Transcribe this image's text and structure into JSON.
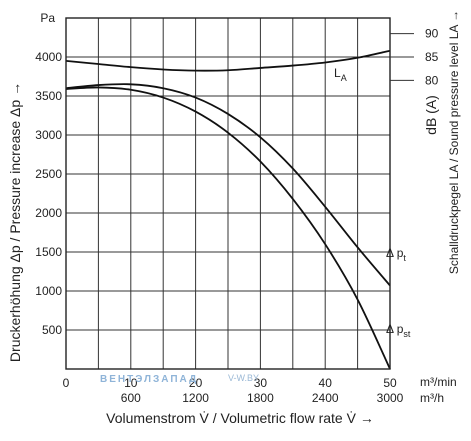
{
  "chart_data": {
    "type": "line",
    "xlabel": "Volumenstrom V̇ / Volumetric flow rate V̇ →",
    "ylabel_left": "Druckerhöhung Δp / Pressure increase Δp →",
    "ylabel_right_db": "dB (A)",
    "ylabel_right_desc": "Schalldruckpegel LA / Sound pressure level LA →",
    "y_unit": "Pa",
    "x_unit_min": "m³/min",
    "x_unit_h": "m³/h",
    "xlim_min": [
      0,
      50
    ],
    "ylim": [
      0,
      4500
    ],
    "x_ticks_min": [
      0,
      10,
      20,
      30,
      40,
      50
    ],
    "x_ticks_h": [
      600,
      1200,
      1800,
      2400,
      3000
    ],
    "y_ticks": [
      500,
      1000,
      1500,
      2000,
      2500,
      3000,
      3500,
      4000
    ],
    "right_ticks_db": [
      {
        "label": "90",
        "pa": 4300
      },
      {
        "label": "85",
        "pa": 4000
      },
      {
        "label": "80",
        "pa": 3700
      }
    ],
    "series": [
      {
        "name": "Δ pt",
        "x": [
          0,
          5,
          10,
          15,
          20,
          25,
          30,
          35,
          40,
          45,
          50
        ],
        "y": [
          3600,
          3640,
          3650,
          3600,
          3480,
          3270,
          2970,
          2570,
          2080,
          1560,
          1070
        ]
      },
      {
        "name": "Δ pst",
        "x": [
          0,
          5,
          10,
          15,
          20,
          25,
          30,
          35,
          40,
          45,
          50
        ],
        "y": [
          3590,
          3610,
          3580,
          3480,
          3300,
          3030,
          2660,
          2180,
          1600,
          890,
          0
        ]
      },
      {
        "name": "LA",
        "x": [
          0,
          5,
          10,
          15,
          20,
          25,
          30,
          35,
          40,
          45,
          50
        ],
        "y": [
          3950,
          3910,
          3870,
          3840,
          3825,
          3830,
          3860,
          3890,
          3930,
          3990,
          4080
        ]
      }
    ],
    "curve_labels": {
      "pt_main": "Δ p",
      "pt_sub": "t",
      "pst_main": "Δ p",
      "pst_sub": "st",
      "la_main": "L",
      "la_sub": "A"
    },
    "grid": true
  },
  "watermark": {
    "brand": "ВЕНТЭЛЗАПАД",
    "site": "V-W.BY"
  }
}
